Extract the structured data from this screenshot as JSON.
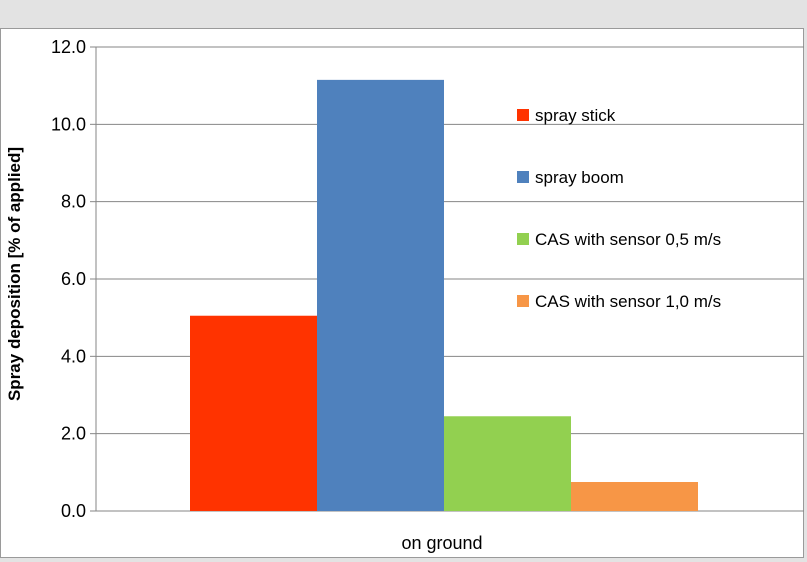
{
  "chart_data": {
    "type": "bar",
    "categories": [
      "on ground"
    ],
    "series": [
      {
        "name": "spray stick",
        "values": [
          5.05
        ],
        "color": "#ff3300"
      },
      {
        "name": "spray boom",
        "values": [
          11.15
        ],
        "color": "#4f81bd"
      },
      {
        "name": "CAS with sensor 0,5 m/s",
        "values": [
          2.45
        ],
        "color": "#92d050"
      },
      {
        "name": "CAS with sensor 1,0 m/s",
        "values": [
          0.75
        ],
        "color": "#f79646"
      }
    ],
    "ylabel": "Spray deposition [% of applied]",
    "xlabel": "",
    "ylim": [
      0,
      12
    ],
    "yticks": [
      "0.0",
      "2.0",
      "4.0",
      "6.0",
      "8.0",
      "10.0",
      "12.0"
    ],
    "grid": true,
    "legend_position": "right"
  }
}
